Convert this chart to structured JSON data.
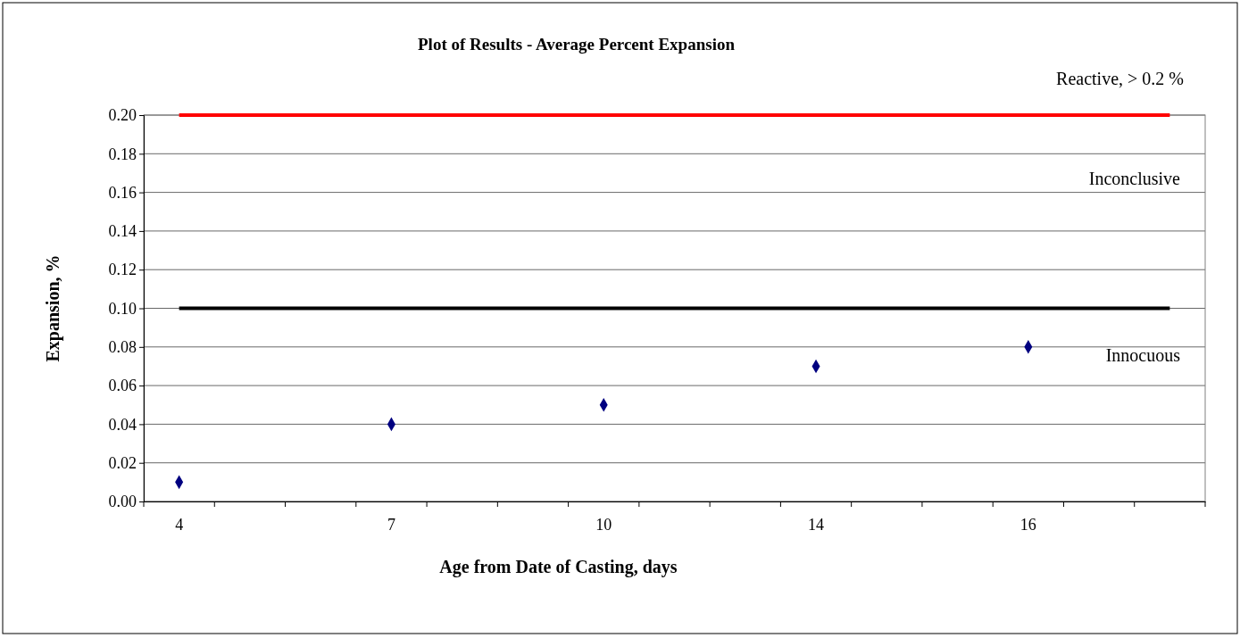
{
  "chart_data": {
    "type": "scatter",
    "title": "Plot of Results - Average Percent Expansion",
    "xlabel": "Age from Date of Casting, days",
    "ylabel": "Expansion, %",
    "categories": [
      "4",
      null,
      null,
      "7",
      null,
      null,
      "10",
      null,
      null,
      "14",
      null,
      null,
      "16",
      null,
      null
    ],
    "series": [
      {
        "color": "#000080",
        "values": [
          0.01,
          null,
          null,
          0.04,
          null,
          null,
          0.05,
          null,
          null,
          0.07,
          null,
          null,
          0.08,
          null,
          null
        ]
      }
    ],
    "ylim": [
      0,
      0.2
    ],
    "yticks": [
      {
        "value": 0,
        "label": "0.00"
      },
      {
        "value": 0.02,
        "label": "0.02"
      },
      {
        "value": 0.04,
        "label": "0.04"
      },
      {
        "value": 0.06,
        "label": "0.06"
      },
      {
        "value": 0.08,
        "label": "0.08"
      },
      {
        "value": 0.1,
        "label": "0.10"
      },
      {
        "value": 0.12,
        "label": "0.12"
      },
      {
        "value": 0.14,
        "label": "0.14"
      },
      {
        "value": 0.16,
        "label": "0.16"
      },
      {
        "value": 0.18,
        "label": "0.18"
      },
      {
        "value": 0.2,
        "label": "0.20"
      }
    ],
    "grid": "y",
    "marker": "diamond",
    "ref_lines": [
      {
        "axis": "y",
        "value": 0.2,
        "label": "Reactive, > 0.2 %",
        "color": "#ff0000"
      },
      {
        "axis": "y",
        "value": 0.1,
        "color": "#000000"
      }
    ],
    "annotations": [
      "Inconclusive",
      "Innocuous"
    ]
  }
}
